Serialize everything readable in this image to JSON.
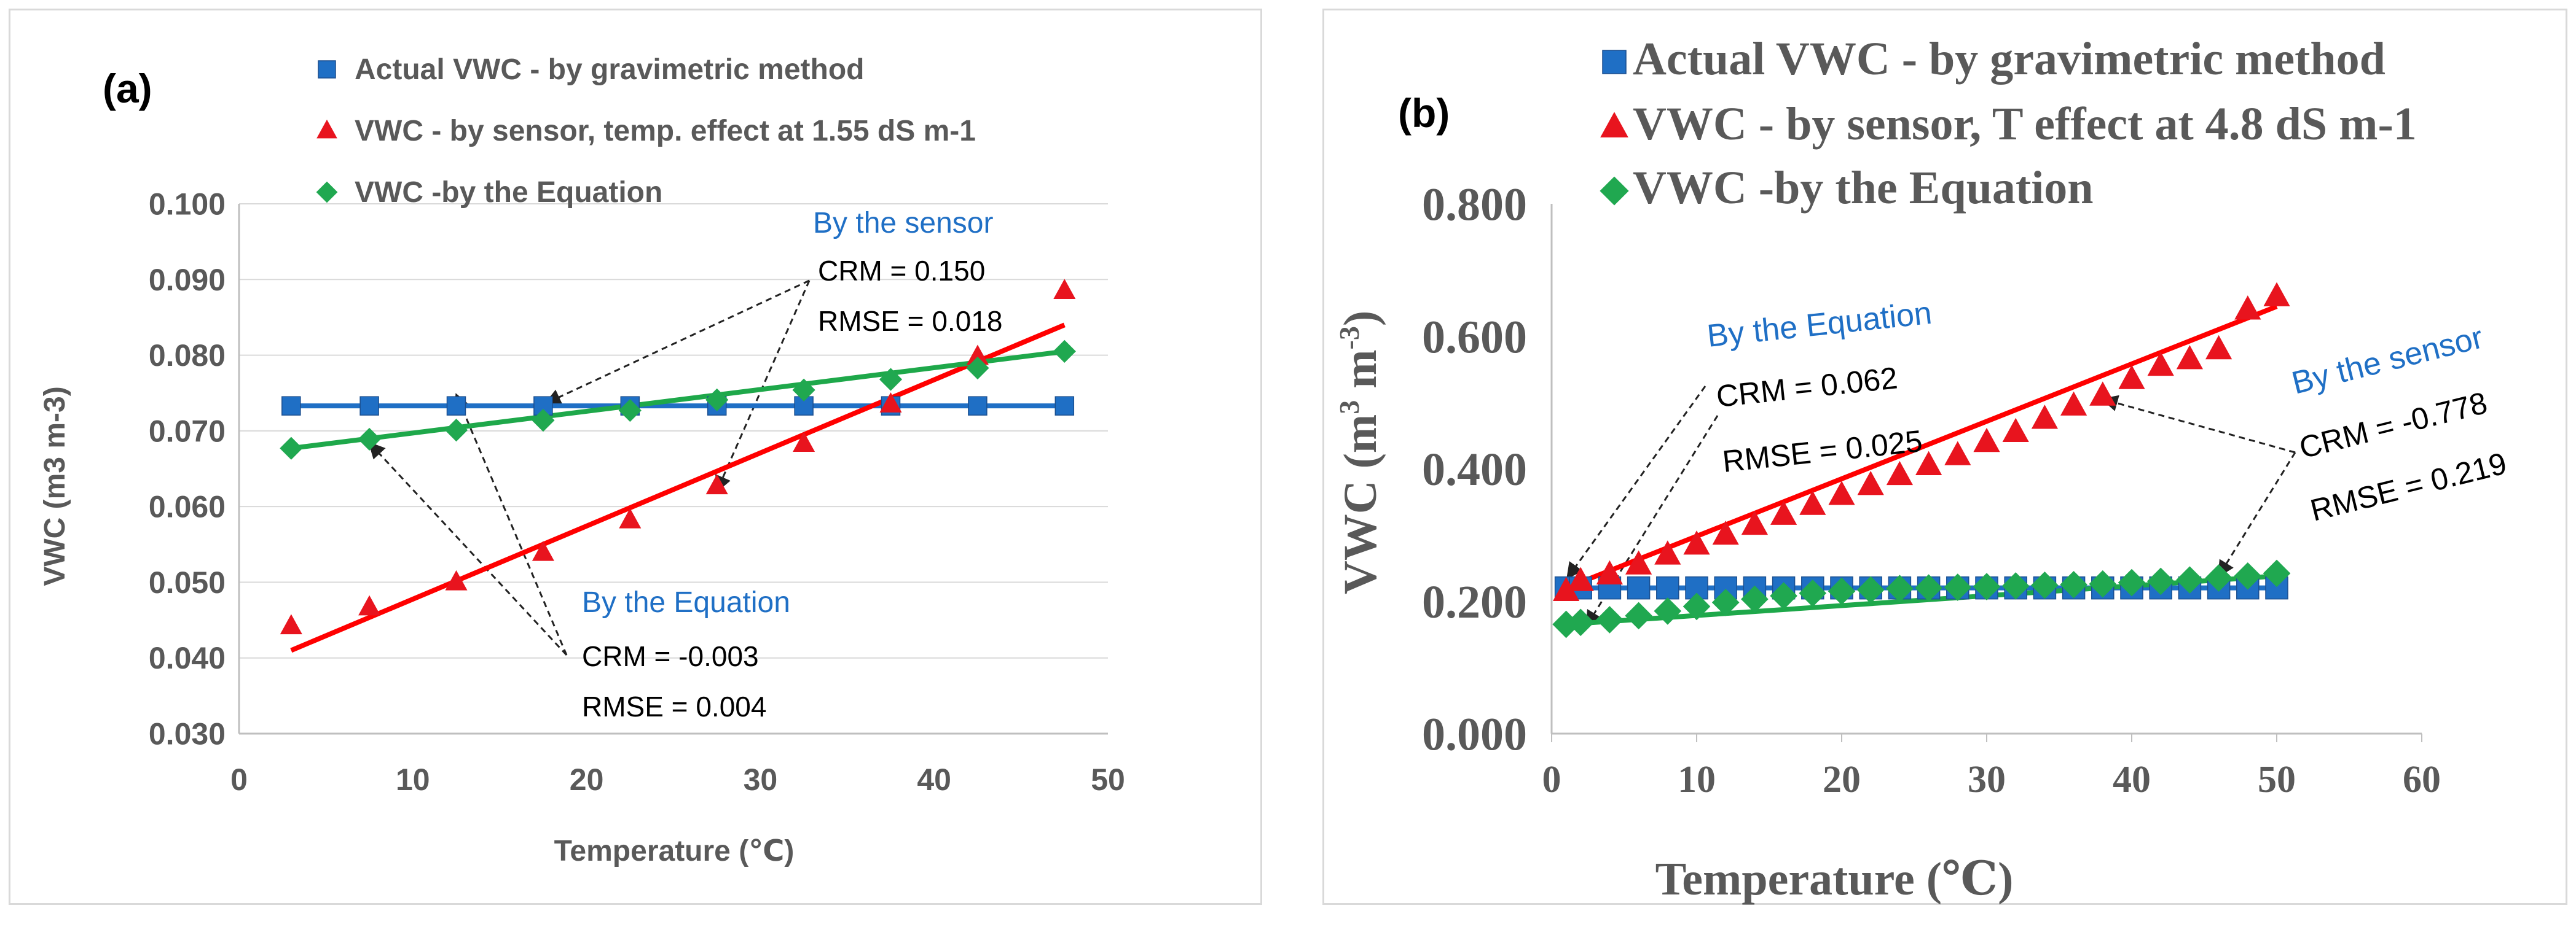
{
  "colors": {
    "actual": "#1f6fc5",
    "sensor": "#ff0000",
    "sensor_marker": "#e8141e",
    "equation": "#1ea84a",
    "equation_marker": "#20a850",
    "annotation_title": "#1f6fc5",
    "axis_text": "#595959",
    "gridline": "#d9d9d9",
    "axis_line": "#bfbfbf"
  },
  "chart_data": [
    {
      "type": "scatter",
      "panel_label": "(a)",
      "xlabel": "Temperature (℃)",
      "ylabel": "VWC (m3 m-3)",
      "xlim": [
        0,
        50
      ],
      "ylim": [
        0.03,
        0.1
      ],
      "x_ticks": [
        "0",
        "10",
        "20",
        "30",
        "40",
        "50"
      ],
      "y_ticks": [
        "0.030",
        "0.040",
        "0.050",
        "0.060",
        "0.070",
        "0.080",
        "0.090",
        "0.100"
      ],
      "legend": [
        "Actual VWC - by gravimetric method",
        "VWC - by sensor, temp. effect at 1.55 dS m-1",
        "VWC -by the Equation"
      ],
      "series": [
        {
          "name": "Actual VWC - by gravimetric method",
          "marker": "square",
          "x": [
            3,
            7.5,
            12.5,
            17.5,
            22.5,
            27.5,
            32.5,
            37.5,
            42.5,
            47.5
          ],
          "y": [
            0.0733,
            0.0733,
            0.0733,
            0.0733,
            0.0733,
            0.0733,
            0.0733,
            0.0733,
            0.0733,
            0.0733
          ],
          "trend": [
            [
              3,
              0.0733
            ],
            [
              47.5,
              0.0733
            ]
          ]
        },
        {
          "name": "VWC - by sensor, temp. effect at 1.55 dS m-1",
          "marker": "triangle",
          "x": [
            3,
            7.5,
            12.5,
            17.5,
            22.5,
            27.5,
            32.5,
            37.5,
            42.5,
            47.5
          ],
          "y": [
            0.0442,
            0.0467,
            0.05,
            0.0539,
            0.0582,
            0.0627,
            0.0683,
            0.0735,
            0.0798,
            0.0885
          ],
          "trend": [
            [
              3,
              0.041
            ],
            [
              47.5,
              0.084
            ]
          ]
        },
        {
          "name": "VWC -by the Equation",
          "marker": "diamond",
          "x": [
            3,
            7.5,
            12.5,
            17.5,
            22.5,
            27.5,
            32.5,
            37.5,
            42.5,
            47.5
          ],
          "y": [
            0.0677,
            0.0689,
            0.0701,
            0.0714,
            0.0727,
            0.0741,
            0.0754,
            0.0768,
            0.0783,
            0.0805
          ],
          "trend": [
            [
              3,
              0.0677
            ],
            [
              47.5,
              0.0805
            ]
          ]
        }
      ],
      "annotations": {
        "sensor": {
          "title": "By the sensor",
          "crm": "CRM = 0.150",
          "rmse": "RMSE = 0.018"
        },
        "equation": {
          "title": "By the Equation",
          "crm": "CRM = -0.003",
          "rmse": "RMSE = 0.004"
        }
      }
    },
    {
      "type": "scatter",
      "panel_label": "(b)",
      "xlabel": "Temperature (℃)",
      "ylabel": "VWC (m",
      "ylabel_sup": "3",
      "ylabel_mid": " m",
      "ylabel_sup2": "-3",
      "ylabel_end": ")",
      "xlim": [
        0,
        60
      ],
      "ylim": [
        0,
        0.8
      ],
      "x_ticks": [
        "0",
        "10",
        "20",
        "30",
        "40",
        "50",
        "60"
      ],
      "y_ticks": [
        "0.000",
        "0.200",
        "0.400",
        "0.600",
        "0.800"
      ],
      "legend": [
        "Actual VWC - by gravimetric method",
        "VWC - by sensor, T effect at 4.8 dS m-1",
        "VWC -by the Equation"
      ],
      "series": [
        {
          "name": "Actual VWC - by gravimetric method",
          "marker": "square",
          "x": [
            1,
            2,
            4,
            6,
            8,
            10,
            12,
            14,
            16,
            18,
            20,
            22,
            24,
            26,
            28,
            30,
            32,
            34,
            36,
            38,
            40,
            42,
            44,
            46,
            48,
            50
          ],
          "y": [
            0.22,
            0.22,
            0.22,
            0.22,
            0.22,
            0.22,
            0.22,
            0.22,
            0.22,
            0.22,
            0.22,
            0.22,
            0.22,
            0.22,
            0.22,
            0.22,
            0.22,
            0.22,
            0.22,
            0.22,
            0.22,
            0.22,
            0.22,
            0.22,
            0.22,
            0.22
          ],
          "trend": [
            [
              1,
              0.22
            ],
            [
              50,
              0.22
            ]
          ]
        },
        {
          "name": "VWC - by sensor, T effect at 4.8 dS m-1",
          "marker": "triangle",
          "x": [
            1,
            2,
            4,
            6,
            8,
            10,
            12,
            14,
            16,
            18,
            20,
            22,
            24,
            26,
            28,
            30,
            32,
            34,
            36,
            38,
            40,
            42,
            44,
            46,
            48,
            50
          ],
          "y": [
            0.215,
            0.23,
            0.24,
            0.255,
            0.27,
            0.285,
            0.3,
            0.315,
            0.33,
            0.345,
            0.36,
            0.375,
            0.39,
            0.405,
            0.42,
            0.44,
            0.455,
            0.475,
            0.495,
            0.51,
            0.535,
            0.555,
            0.565,
            0.58,
            0.64,
            0.66
          ],
          "trend": [
            [
              1,
              0.22
            ],
            [
              50,
              0.645
            ]
          ]
        },
        {
          "name": "VWC -by the Equation",
          "marker": "diamond",
          "x": [
            1,
            2,
            4,
            6,
            8,
            10,
            12,
            14,
            16,
            18,
            20,
            22,
            24,
            26,
            28,
            30,
            32,
            34,
            36,
            38,
            40,
            42,
            44,
            46,
            48,
            50
          ],
          "y": [
            0.165,
            0.168,
            0.172,
            0.178,
            0.185,
            0.192,
            0.198,
            0.203,
            0.208,
            0.212,
            0.215,
            0.217,
            0.219,
            0.22,
            0.221,
            0.222,
            0.223,
            0.224,
            0.225,
            0.226,
            0.228,
            0.23,
            0.232,
            0.235,
            0.238,
            0.242
          ],
          "trend": [
            [
              1,
              0.165
            ],
            [
              50,
              0.238
            ]
          ]
        }
      ],
      "annotations": {
        "equation": {
          "title": "By the Equation",
          "crm": "CRM = 0.062",
          "rmse": "RMSE = 0.025"
        },
        "sensor": {
          "title": "By the sensor",
          "crm": "CRM = -0.778",
          "rmse": "RMSE = 0.219"
        }
      }
    }
  ]
}
